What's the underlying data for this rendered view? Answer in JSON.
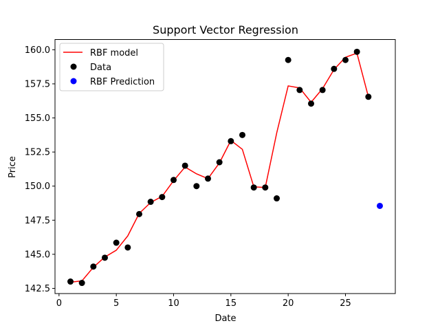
{
  "chart_data": {
    "type": "scatter",
    "title": "Support Vector Regression",
    "xlabel": "Date",
    "ylabel": "Price",
    "xlim": [
      -0.35,
      29.35
    ],
    "ylim": [
      142.12,
      160.75
    ],
    "xticks": [
      0,
      5,
      10,
      15,
      20,
      25
    ],
    "yticks": [
      142.5,
      145.0,
      147.5,
      150.0,
      152.5,
      155.0,
      157.5,
      160.0
    ],
    "xtick_labels": [
      "0",
      "5",
      "10",
      "15",
      "20",
      "25"
    ],
    "ytick_labels": [
      "142.5",
      "145.0",
      "147.5",
      "150.0",
      "152.5",
      "155.0",
      "157.5",
      "160.0"
    ],
    "legend_position": "top-left",
    "series": [
      {
        "name": "RBF model",
        "kind": "line",
        "color": "#ff0000",
        "x": [
          1,
          2,
          3,
          4,
          5,
          6,
          7,
          8,
          9,
          10,
          11,
          12,
          13,
          14,
          15,
          16,
          17,
          18,
          19,
          20,
          21,
          22,
          23,
          24,
          25,
          26,
          27
        ],
        "y": [
          142.95,
          143.05,
          144.05,
          144.8,
          145.3,
          146.35,
          148.0,
          148.8,
          149.25,
          150.4,
          151.4,
          150.9,
          150.55,
          151.7,
          153.35,
          152.7,
          149.95,
          149.9,
          153.9,
          157.35,
          157.2,
          156.15,
          157.15,
          158.55,
          159.45,
          159.75,
          156.55
        ]
      },
      {
        "name": "Data",
        "kind": "scatter",
        "color": "#000000",
        "x": [
          1,
          2,
          3,
          4,
          5,
          6,
          7,
          8,
          9,
          10,
          11,
          12,
          13,
          14,
          15,
          16,
          17,
          18,
          19,
          20,
          21,
          22,
          23,
          24,
          25,
          26,
          27
        ],
        "y": [
          143.0,
          142.9,
          144.1,
          144.75,
          145.85,
          145.5,
          147.95,
          148.85,
          149.2,
          150.45,
          151.5,
          150.0,
          150.55,
          151.75,
          153.3,
          153.75,
          149.9,
          149.9,
          149.1,
          159.25,
          157.05,
          156.05,
          157.05,
          158.6,
          159.25,
          159.85,
          156.55
        ]
      },
      {
        "name": "RBF Prediction",
        "kind": "scatter",
        "color": "#0000ff",
        "x": [
          28
        ],
        "y": [
          148.55
        ]
      }
    ]
  }
}
